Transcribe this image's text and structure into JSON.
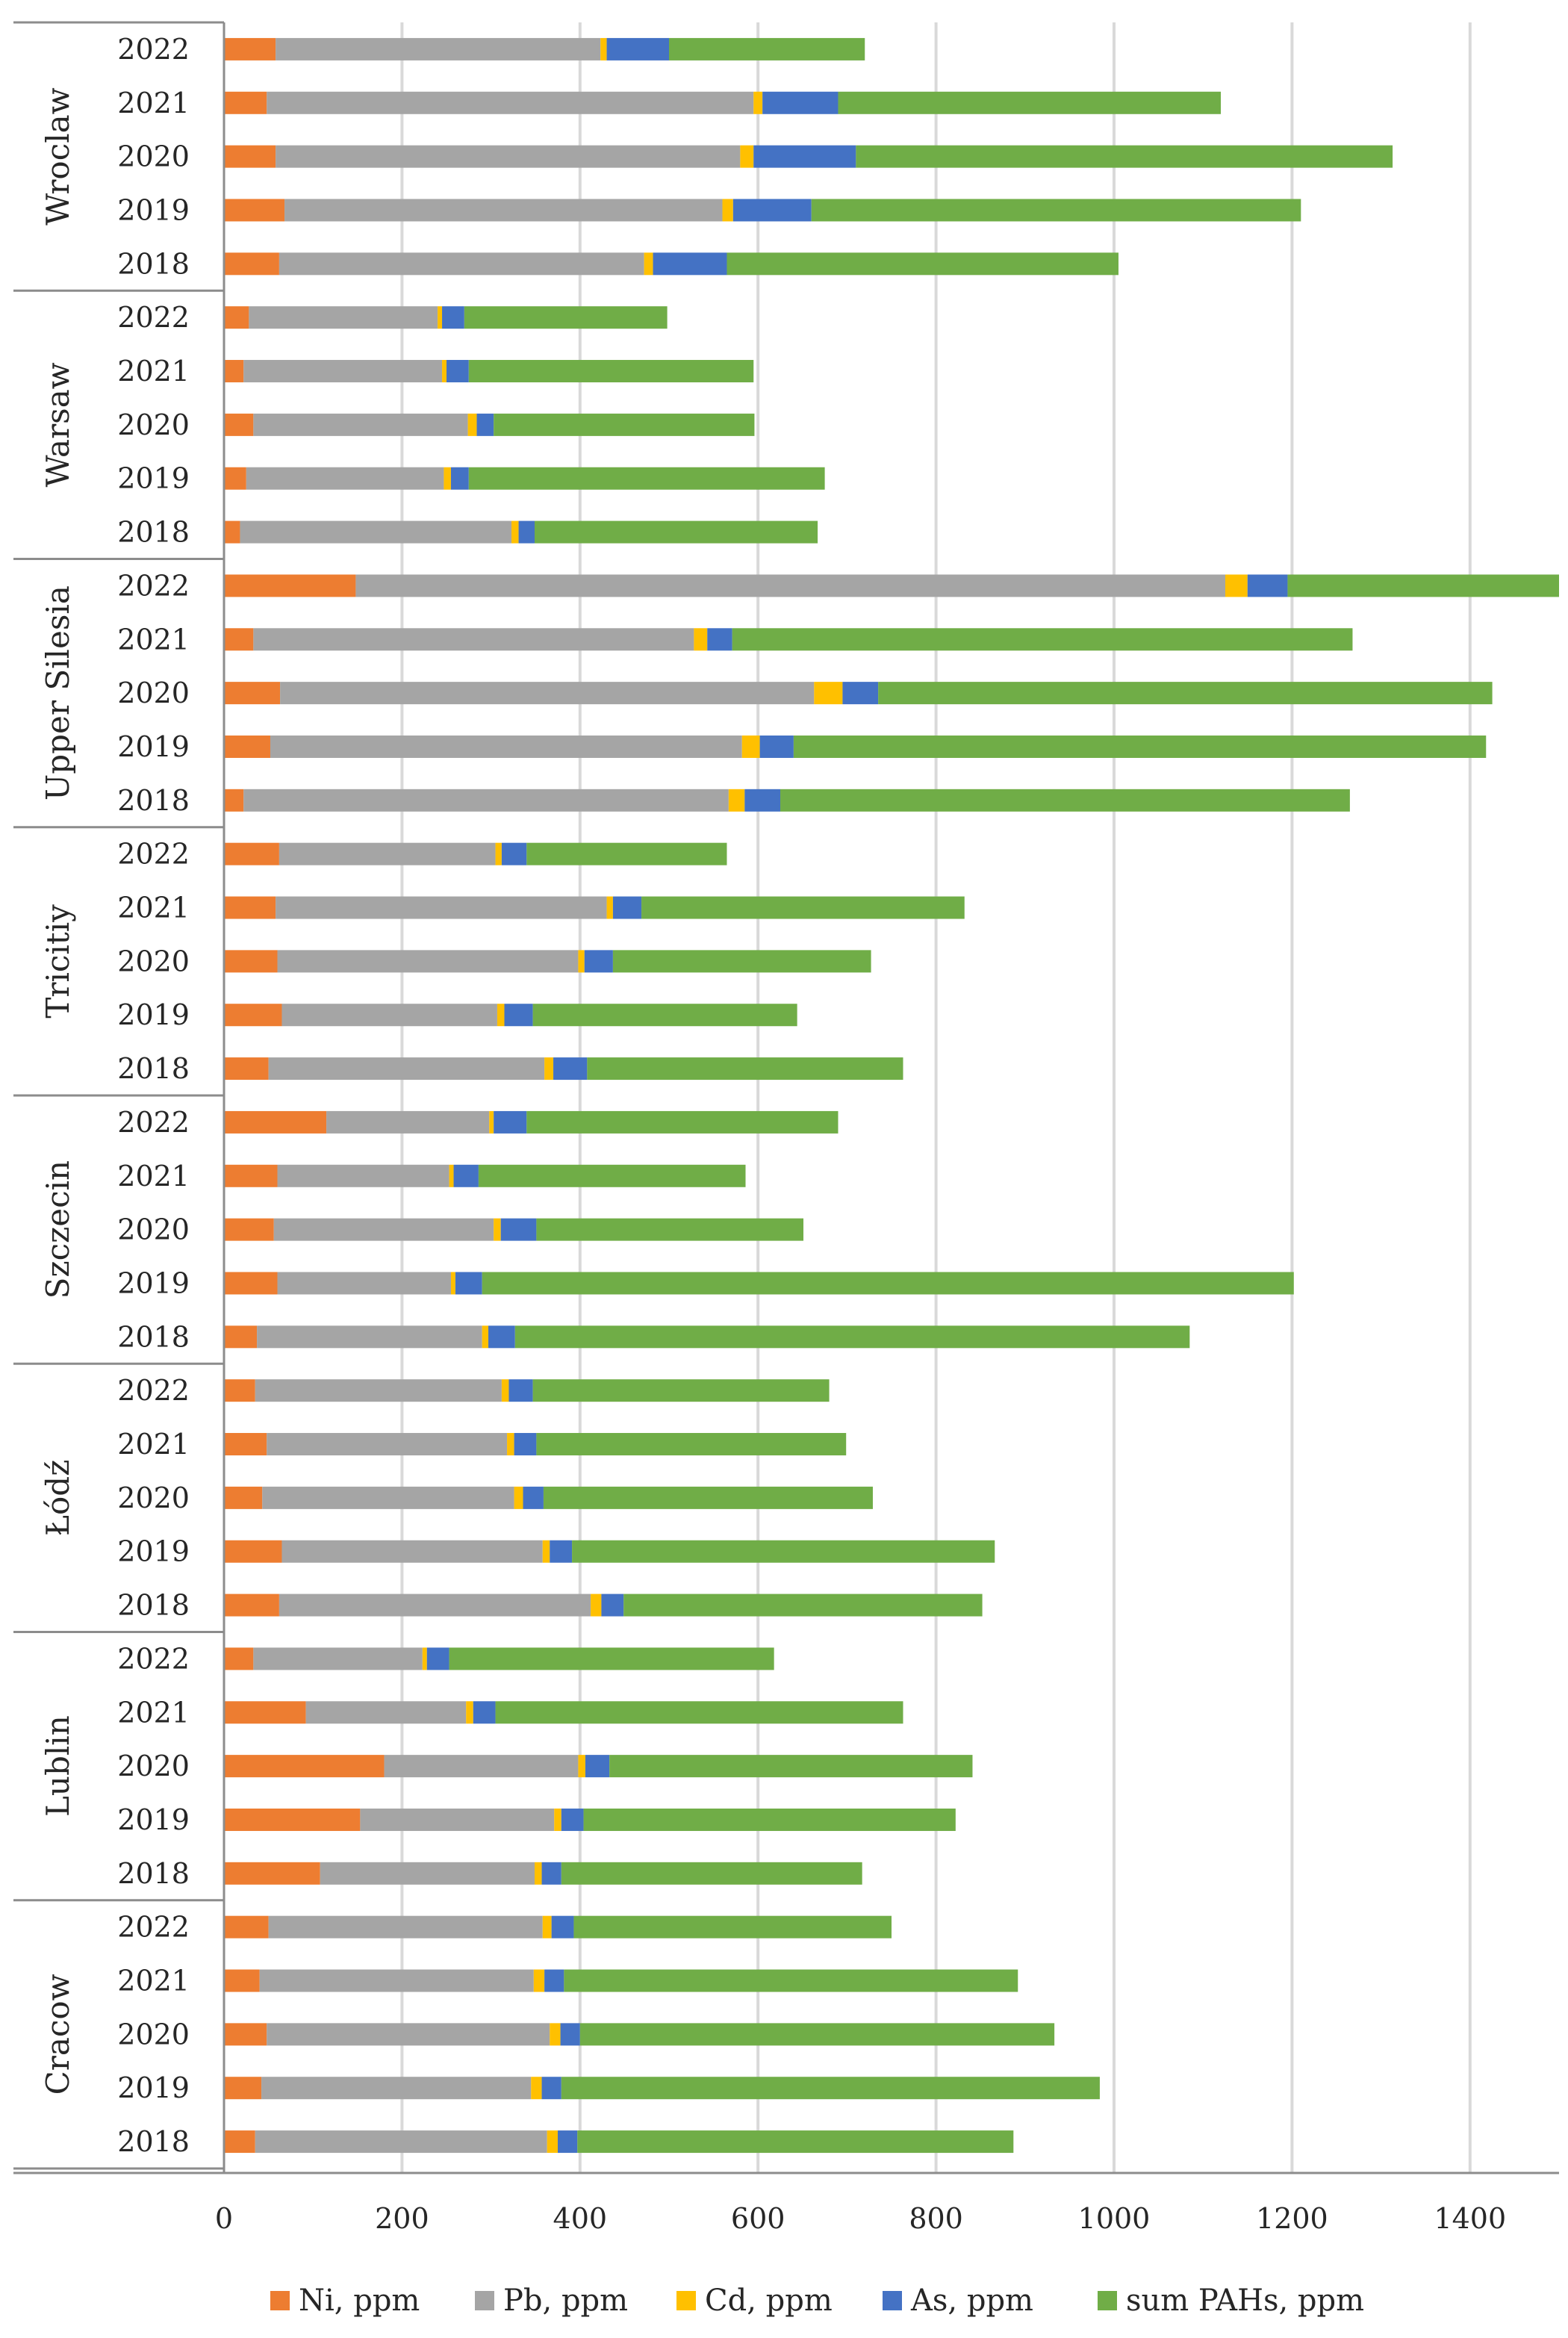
{
  "chart_data": {
    "type": "bar",
    "orientation": "horizontal",
    "stacked": true,
    "title": "",
    "xlabel": "",
    "ylabel": "",
    "xlim": [
      0,
      1500
    ],
    "xticks": [
      "0",
      "200",
      "400",
      "600",
      "800",
      "1000",
      "1200",
      "1400"
    ],
    "grid": "vertical",
    "legend_position": "bottom",
    "series_names": [
      "Ni, ppm",
      "Pb, ppm",
      "Cd, ppm",
      "As, ppm",
      "sum PAHs, ppm"
    ],
    "colors": [
      "#ED7D31",
      "#A5A5A5",
      "#FFC000",
      "#4472C4",
      "#70AD47"
    ],
    "groups": [
      {
        "city": "Wroclaw",
        "bars": [
          {
            "year": "2022",
            "values": [
              58,
              365,
              7,
              70,
              220
            ]
          },
          {
            "year": "2021",
            "values": [
              48,
              547,
              10,
              85,
              430
            ]
          },
          {
            "year": "2020",
            "values": [
              58,
              522,
              15,
              115,
              603
            ]
          },
          {
            "year": "2019",
            "values": [
              68,
              492,
              12,
              88,
              550
            ]
          },
          {
            "year": "2018",
            "values": [
              62,
              410,
              10,
              83,
              440
            ]
          }
        ]
      },
      {
        "city": "Warsaw",
        "bars": [
          {
            "year": "2022",
            "values": [
              28,
              212,
              5,
              25,
              228
            ]
          },
          {
            "year": "2021",
            "values": [
              22,
              223,
              5,
              25,
              320
            ]
          },
          {
            "year": "2020",
            "values": [
              33,
              241,
              10,
              19,
              293
            ]
          },
          {
            "year": "2019",
            "values": [
              25,
              222,
              8,
              20,
              400
            ]
          },
          {
            "year": "2018",
            "values": [
              18,
              305,
              8,
              18,
              318
            ]
          }
        ]
      },
      {
        "city": "Upper Silesia",
        "bars": [
          {
            "year": "2022",
            "values": [
              148,
              977,
              25,
              45,
              310
            ]
          },
          {
            "year": "2021",
            "values": [
              33,
              495,
              15,
              28,
              697
            ]
          },
          {
            "year": "2020",
            "values": [
              63,
              600,
              32,
              40,
              690
            ]
          },
          {
            "year": "2019",
            "values": [
              52,
              530,
              20,
              38,
              778
            ]
          },
          {
            "year": "2018",
            "values": [
              22,
              545,
              18,
              40,
              640
            ]
          }
        ]
      },
      {
        "city": "Tricitiy",
        "bars": [
          {
            "year": "2022",
            "values": [
              62,
              243,
              7,
              28,
              225
            ]
          },
          {
            "year": "2021",
            "values": [
              58,
              372,
              7,
              32,
              363
            ]
          },
          {
            "year": "2020",
            "values": [
              60,
              338,
              7,
              32,
              290
            ]
          },
          {
            "year": "2019",
            "values": [
              65,
              242,
              8,
              32,
              297
            ]
          },
          {
            "year": "2018",
            "values": [
              50,
              310,
              10,
              38,
              355
            ]
          }
        ]
      },
      {
        "city": "Szczecin",
        "bars": [
          {
            "year": "2022",
            "values": [
              115,
              183,
              5,
              37,
              350
            ]
          },
          {
            "year": "2021",
            "values": [
              60,
              193,
              5,
              28,
              300
            ]
          },
          {
            "year": "2020",
            "values": [
              56,
              247,
              8,
              40,
              300
            ]
          },
          {
            "year": "2019",
            "values": [
              60,
              195,
              5,
              30,
              912
            ]
          },
          {
            "year": "2018",
            "values": [
              37,
              253,
              7,
              30,
              758
            ]
          }
        ]
      },
      {
        "city": "Łódź",
        "bars": [
          {
            "year": "2022",
            "values": [
              35,
              277,
              8,
              27,
              333
            ]
          },
          {
            "year": "2021",
            "values": [
              48,
              270,
              8,
              25,
              348
            ]
          },
          {
            "year": "2020",
            "values": [
              43,
              283,
              10,
              23,
              370
            ]
          },
          {
            "year": "2019",
            "values": [
              65,
              293,
              8,
              25,
              475
            ]
          },
          {
            "year": "2018",
            "values": [
              62,
              350,
              12,
              25,
              403
            ]
          }
        ]
      },
      {
        "city": "Lublin",
        "bars": [
          {
            "year": "2022",
            "values": [
              33,
              190,
              5,
              25,
              365
            ]
          },
          {
            "year": "2021",
            "values": [
              92,
              180,
              8,
              25,
              458
            ]
          },
          {
            "year": "2020",
            "values": [
              180,
              218,
              8,
              27,
              408
            ]
          },
          {
            "year": "2019",
            "values": [
              153,
              218,
              8,
              25,
              418
            ]
          },
          {
            "year": "2018",
            "values": [
              108,
              241,
              8,
              22,
              338
            ]
          }
        ]
      },
      {
        "city": "Cracow",
        "bars": [
          {
            "year": "2022",
            "values": [
              50,
              308,
              10,
              25,
              357
            ]
          },
          {
            "year": "2021",
            "values": [
              40,
              308,
              12,
              22,
              510
            ]
          },
          {
            "year": "2020",
            "values": [
              48,
              318,
              12,
              22,
              533
            ]
          },
          {
            "year": "2019",
            "values": [
              42,
              303,
              12,
              22,
              605
            ]
          },
          {
            "year": "2018",
            "values": [
              35,
              328,
              12,
              22,
              490
            ]
          }
        ]
      }
    ]
  }
}
